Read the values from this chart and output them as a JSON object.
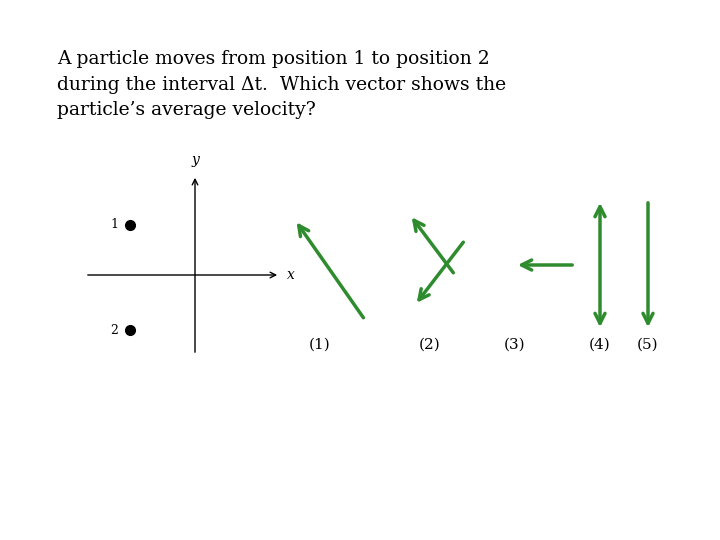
{
  "title_text": "A particle moves from position 1 to position 2\nduring the interval Δt.  Which vector shows the\nparticle’s average velocity?",
  "bg_color": "#ffffff",
  "arrow_color": "#2e8b2e",
  "text_color": "#000000",
  "labels": [
    "(1)",
    "(2)",
    "(3)",
    "(4)",
    "(5)"
  ],
  "figsize": [
    7.2,
    5.4
  ],
  "dpi": 100
}
